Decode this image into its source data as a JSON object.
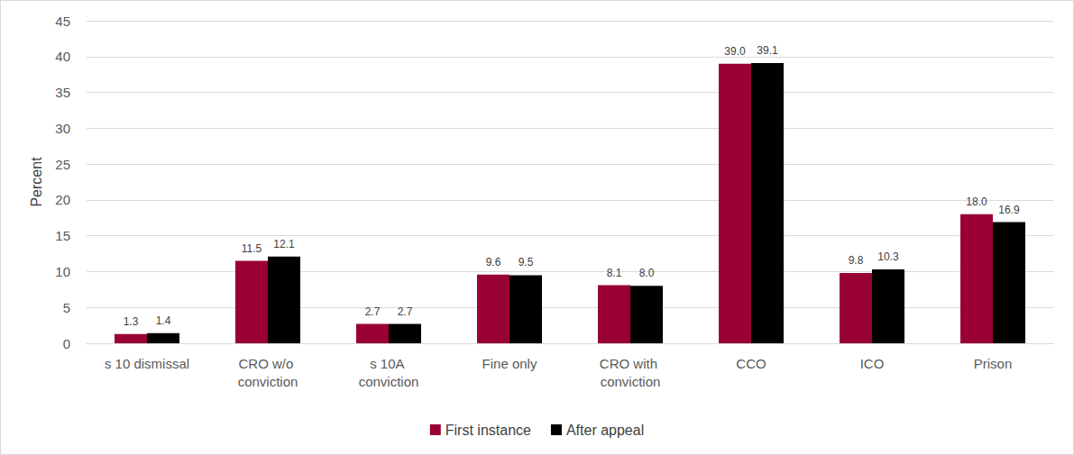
{
  "chart_data": {
    "type": "bar",
    "y_label": "Percent",
    "categories": [
      "s 10 dismissal",
      "CRO w/o conviction",
      "s 10A conviction",
      "Fine only",
      "CRO with conviction",
      "CCO",
      "ICO",
      "Prison"
    ],
    "series": [
      {
        "name": "First instance",
        "color": "#990033",
        "values": [
          1.3,
          11.5,
          2.7,
          9.6,
          8.1,
          39.0,
          9.8,
          18.0
        ],
        "value_labels": [
          "1.3",
          "11.5",
          "2.7",
          "9.6",
          "8.1",
          "39.0",
          "9.8",
          "18.0"
        ]
      },
      {
        "name": "After appeal",
        "color": "#000000",
        "values": [
          1.4,
          12.1,
          2.7,
          9.5,
          8.0,
          39.1,
          10.3,
          16.9
        ],
        "value_labels": [
          "1.4",
          "12.1",
          "2.7",
          "9.5",
          "8.0",
          "39.1",
          "10.3",
          "16.9"
        ]
      }
    ],
    "ylim": [
      0,
      45
    ],
    "yticks": [
      0,
      5,
      10,
      15,
      20,
      25,
      30,
      35,
      40,
      45
    ],
    "grid": true,
    "legend": "bottom",
    "data_labels": true
  }
}
